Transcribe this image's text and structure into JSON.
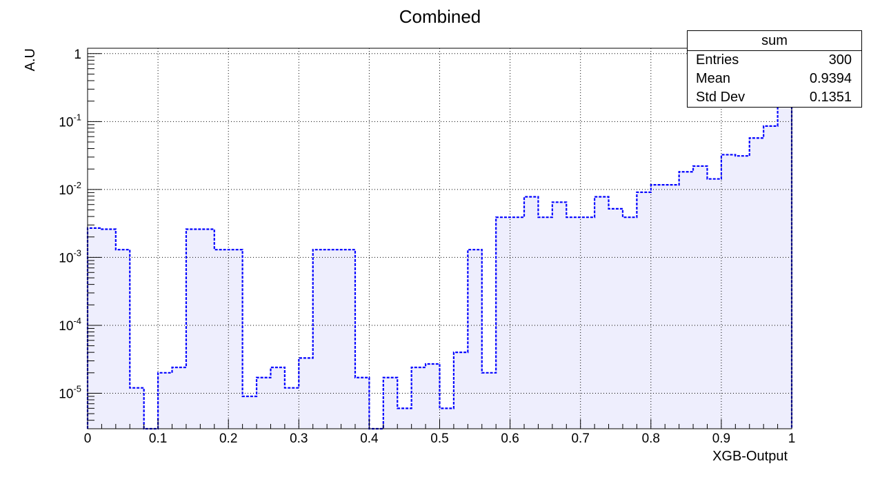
{
  "chart_data": {
    "type": "histogram",
    "title": "Combined",
    "xlabel": "XGB-Output",
    "ylabel": "A.U",
    "xlim": [
      0,
      1
    ],
    "ylim": [
      3e-06,
      1.2
    ],
    "log_y": true,
    "grid": true,
    "x_ticks": [
      "0",
      "0.1",
      "0.2",
      "0.3",
      "0.4",
      "0.5",
      "0.6",
      "0.7",
      "0.8",
      "0.9",
      "1"
    ],
    "y_ticks": [
      {
        "base": "10",
        "exp": "-5",
        "value": 1e-05
      },
      {
        "base": "10",
        "exp": "-4",
        "value": 0.0001
      },
      {
        "base": "10",
        "exp": "-3",
        "value": 0.001
      },
      {
        "base": "10",
        "exp": "-2",
        "value": 0.01
      },
      {
        "base": "10",
        "exp": "-1",
        "value": 0.1
      },
      {
        "base": "1",
        "exp": "",
        "value": 1
      }
    ],
    "bin_edges": [
      0,
      0.02,
      0.04,
      0.06,
      0.08,
      0.1,
      0.12,
      0.14,
      0.16,
      0.18,
      0.2,
      0.22,
      0.24,
      0.26,
      0.28,
      0.3,
      0.32,
      0.34,
      0.36,
      0.38,
      0.4,
      0.42,
      0.44,
      0.46,
      0.48,
      0.5,
      0.52,
      0.54,
      0.56,
      0.58,
      0.6,
      0.62,
      0.64,
      0.66,
      0.68,
      0.7,
      0.72,
      0.74,
      0.76,
      0.78,
      0.8,
      0.82,
      0.84,
      0.86,
      0.88,
      0.9,
      0.92,
      0.94,
      0.96,
      0.98,
      1.0
    ],
    "values": [
      0.0027,
      0.0026,
      0.0013,
      1.2e-05,
      0,
      2e-05,
      2.4e-05,
      0.0026,
      0.0026,
      0.0013,
      0.0013,
      9e-06,
      1.7e-05,
      2.4e-05,
      1.2e-05,
      3.3e-05,
      0.0013,
      0.0013,
      0.0013,
      1.7e-05,
      0,
      1.7e-05,
      6e-06,
      2.4e-05,
      2.7e-05,
      6e-06,
      4e-05,
      0.0013,
      2e-05,
      0.0039,
      0.0039,
      0.0078,
      0.0039,
      0.0065,
      0.0039,
      0.0039,
      0.0078,
      0.0052,
      0.0039,
      0.0091,
      0.0117,
      0.0117,
      0.0182,
      0.0221,
      0.0143,
      0.0325,
      0.0312,
      0.0572,
      0.0858,
      0.19
    ],
    "line_color": "#0000ff",
    "fill_color": "#eeeefd",
    "stats": {
      "name": "sum",
      "rows": [
        {
          "key": "Entries",
          "value": "300"
        },
        {
          "key": "Mean",
          "value": "0.9394"
        },
        {
          "key": "Std Dev",
          "value": "0.1351"
        }
      ]
    }
  }
}
